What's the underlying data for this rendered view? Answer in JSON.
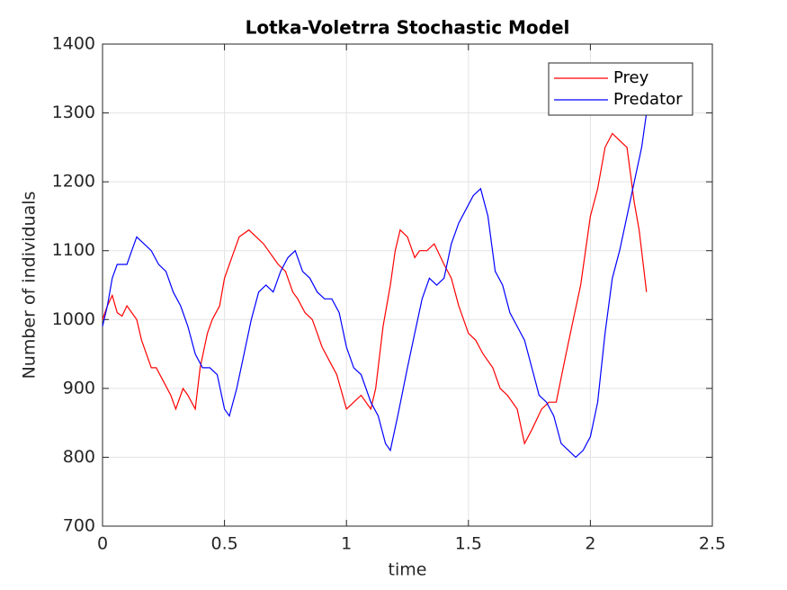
{
  "chart_data": {
    "type": "line",
    "title": "Lotka-Voletrra Stochastic Model",
    "xlabel": "time",
    "ylabel": "Number of individuals",
    "xlim": [
      0,
      2.5
    ],
    "xticks": [
      0,
      0.5,
      1,
      1.5,
      2,
      2.5
    ],
    "ylim": [
      700,
      1400
    ],
    "yticks": [
      700,
      800,
      900,
      1000,
      1100,
      1200,
      1300,
      1400
    ],
    "grid": true,
    "legend": "upper right",
    "series": [
      {
        "name": "Prey",
        "color": "#ff0000",
        "x": [
          0,
          0.02,
          0.04,
          0.06,
          0.08,
          0.1,
          0.12,
          0.14,
          0.16,
          0.18,
          0.2,
          0.22,
          0.25,
          0.28,
          0.3,
          0.33,
          0.35,
          0.38,
          0.4,
          0.43,
          0.45,
          0.48,
          0.5,
          0.53,
          0.56,
          0.6,
          0.63,
          0.66,
          0.68,
          0.72,
          0.75,
          0.78,
          0.8,
          0.83,
          0.86,
          0.88,
          0.9,
          0.93,
          0.96,
          1.0,
          1.03,
          1.06,
          1.1,
          1.12,
          1.15,
          1.18,
          1.2,
          1.22,
          1.25,
          1.28,
          1.3,
          1.33,
          1.36,
          1.4,
          1.43,
          1.46,
          1.5,
          1.53,
          1.56,
          1.6,
          1.63,
          1.66,
          1.7,
          1.73,
          1.76,
          1.8,
          1.83,
          1.86,
          1.9,
          1.93,
          1.96,
          2.0,
          2.03,
          2.06,
          2.09,
          2.12,
          2.15,
          2.18,
          2.2,
          2.22,
          2.23
        ],
        "values": [
          1000,
          1020,
          1035,
          1010,
          1005,
          1020,
          1010,
          1000,
          970,
          950,
          930,
          930,
          910,
          890,
          870,
          900,
          890,
          870,
          930,
          980,
          1000,
          1020,
          1060,
          1090,
          1120,
          1130,
          1120,
          1110,
          1100,
          1080,
          1070,
          1040,
          1030,
          1010,
          1000,
          980,
          960,
          940,
          920,
          870,
          880,
          890,
          870,
          900,
          990,
          1050,
          1100,
          1130,
          1120,
          1090,
          1100,
          1100,
          1110,
          1080,
          1060,
          1020,
          980,
          970,
          950,
          930,
          900,
          890,
          870,
          820,
          840,
          870,
          880,
          880,
          950,
          1000,
          1050,
          1150,
          1190,
          1250,
          1270,
          1260,
          1250,
          1170,
          1130,
          1070,
          1040
        ]
      },
      {
        "name": "Predator",
        "color": "#0000ff",
        "x": [
          0,
          0.02,
          0.04,
          0.06,
          0.08,
          0.1,
          0.12,
          0.14,
          0.17,
          0.2,
          0.23,
          0.26,
          0.29,
          0.32,
          0.35,
          0.38,
          0.41,
          0.44,
          0.47,
          0.5,
          0.52,
          0.55,
          0.58,
          0.61,
          0.64,
          0.67,
          0.7,
          0.73,
          0.76,
          0.79,
          0.82,
          0.85,
          0.88,
          0.91,
          0.94,
          0.97,
          1.0,
          1.03,
          1.06,
          1.1,
          1.13,
          1.16,
          1.18,
          1.21,
          1.25,
          1.28,
          1.31,
          1.34,
          1.37,
          1.4,
          1.43,
          1.46,
          1.49,
          1.52,
          1.55,
          1.58,
          1.61,
          1.64,
          1.67,
          1.7,
          1.73,
          1.76,
          1.79,
          1.82,
          1.85,
          1.88,
          1.91,
          1.94,
          1.97,
          2.0,
          2.03,
          2.06,
          2.09,
          2.12,
          2.15,
          2.18,
          2.21,
          2.23
        ],
        "values": [
          990,
          1020,
          1060,
          1080,
          1080,
          1080,
          1100,
          1120,
          1110,
          1100,
          1080,
          1070,
          1040,
          1020,
          990,
          950,
          930,
          930,
          920,
          870,
          860,
          900,
          950,
          1000,
          1040,
          1050,
          1040,
          1070,
          1090,
          1100,
          1070,
          1060,
          1040,
          1030,
          1030,
          1010,
          960,
          930,
          920,
          880,
          860,
          820,
          810,
          860,
          930,
          980,
          1030,
          1060,
          1050,
          1060,
          1110,
          1140,
          1160,
          1180,
          1190,
          1150,
          1070,
          1050,
          1010,
          990,
          970,
          930,
          890,
          880,
          860,
          820,
          810,
          800,
          810,
          830,
          880,
          980,
          1060,
          1100,
          1150,
          1200,
          1250,
          1300
        ]
      }
    ]
  }
}
